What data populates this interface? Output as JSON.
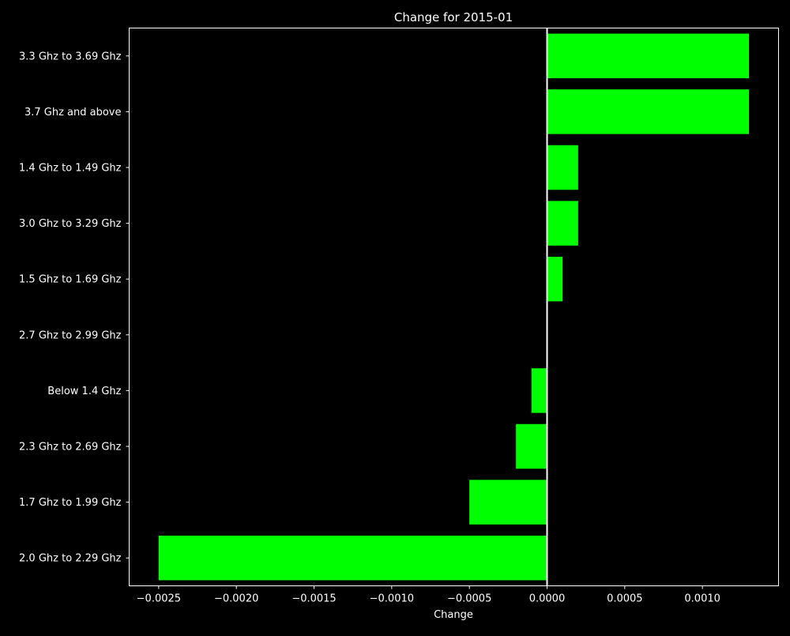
{
  "chart_data": {
    "type": "bar",
    "orientation": "horizontal",
    "title": "Change for 2015-01",
    "xlabel": "Change",
    "ylabel": "",
    "categories": [
      "3.3 Ghz to 3.69 Ghz",
      "3.7 Ghz and above",
      "1.4 Ghz to 1.49 Ghz",
      "3.0 Ghz to 3.29 Ghz",
      "1.5 Ghz to 1.69 Ghz",
      "2.7 Ghz to 2.99 Ghz",
      "Below 1.4 Ghz",
      "2.3 Ghz to 2.69 Ghz",
      "1.7 Ghz to 1.99 Ghz",
      "2.0 Ghz to 2.29 Ghz"
    ],
    "values": [
      0.0013,
      0.0013,
      0.0002,
      0.0002,
      0.0001,
      0.0,
      -0.0001,
      -0.0002,
      -0.0005,
      -0.0025
    ],
    "xlim": [
      -0.00269,
      0.00149
    ],
    "xticks": [
      -0.0025,
      -0.002,
      -0.0015,
      -0.001,
      -0.0005,
      0.0,
      0.0005,
      0.001
    ],
    "xtick_labels": [
      "−0.0025",
      "−0.0020",
      "−0.0015",
      "−0.0010",
      "−0.0005",
      "0.0000",
      "0.0005",
      "0.0010"
    ],
    "zero_line": true,
    "grid": false,
    "colors": {
      "background": "#000000",
      "bar": "#00ff00",
      "axis": "#ffffff",
      "text": "#ffffff"
    }
  }
}
